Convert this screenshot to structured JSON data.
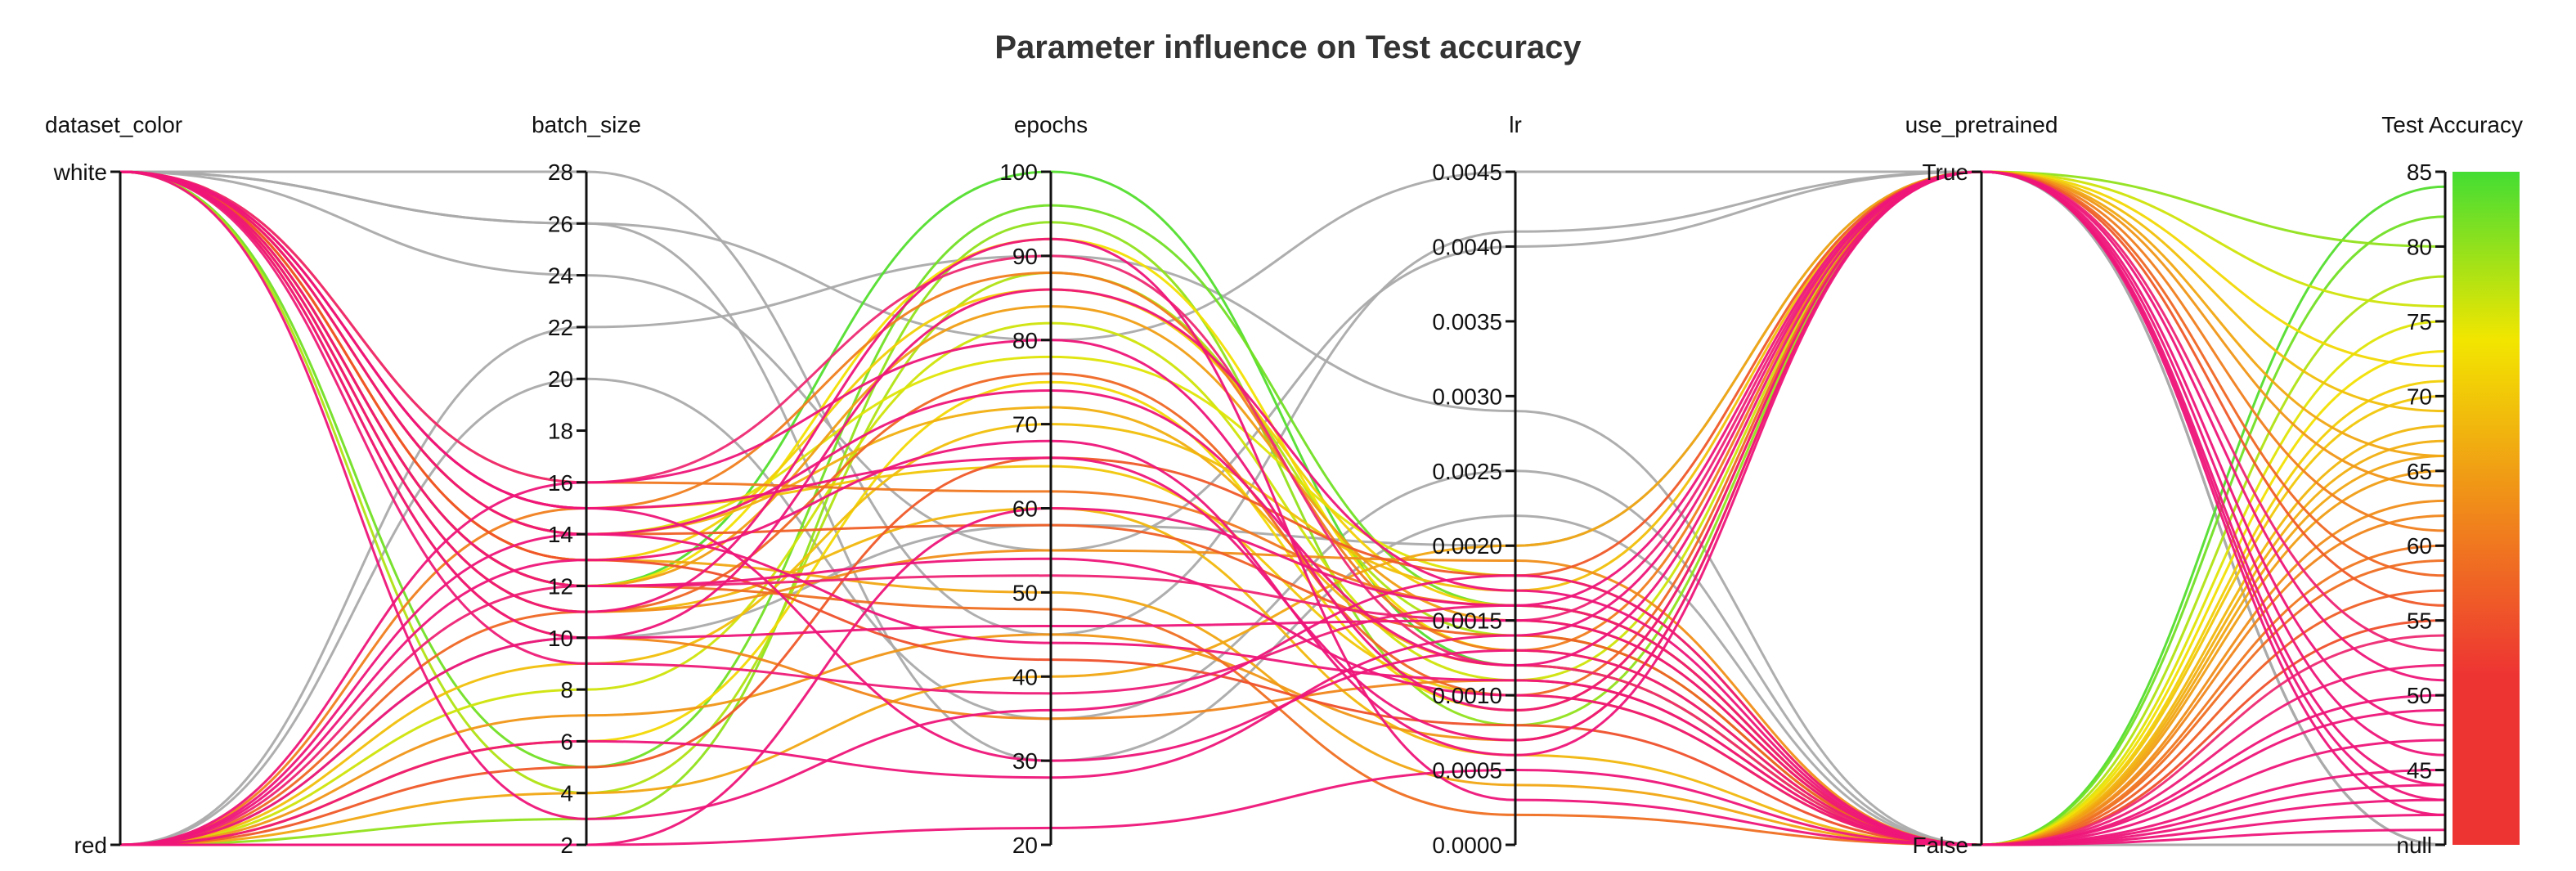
{
  "chart_data": {
    "type": "parallel_coordinates",
    "title": "Parameter influence on Test accuracy",
    "axes": [
      {
        "name": "dataset_color",
        "kind": "categorical",
        "ticks": [
          "white",
          "red"
        ]
      },
      {
        "name": "batch_size",
        "kind": "numeric",
        "range": [
          2,
          28
        ],
        "ticks": [
          "2",
          "4",
          "6",
          "8",
          "10",
          "12",
          "14",
          "16",
          "18",
          "20",
          "22",
          "24",
          "26",
          "28"
        ]
      },
      {
        "name": "epochs",
        "kind": "numeric",
        "range": [
          20,
          100
        ],
        "ticks": [
          "20",
          "30",
          "40",
          "50",
          "60",
          "70",
          "80",
          "90",
          "100"
        ]
      },
      {
        "name": "lr",
        "kind": "numeric",
        "range": [
          0,
          0.0045
        ],
        "ticks": [
          "0.0000",
          "0.0005",
          "0.0010",
          "0.0015",
          "0.0020",
          "0.0025",
          "0.0030",
          "0.0035",
          "0.0040",
          "0.0045"
        ]
      },
      {
        "name": "use_pretrained",
        "kind": "categorical",
        "ticks": [
          "True",
          "False"
        ]
      },
      {
        "name": "Test Accuracy",
        "kind": "numeric",
        "range": [
          40,
          85
        ],
        "ticks": [
          "null",
          "45",
          "50",
          "55",
          "60",
          "65",
          "70",
          "75",
          "80",
          "85"
        ]
      }
    ],
    "colorbar": {
      "range": [
        40,
        85
      ],
      "ticks": [
        "40",
        "45",
        "50",
        "55",
        "60",
        "65",
        "70",
        "75",
        "80",
        "85"
      ],
      "colors": [
        "#ee3333",
        "#ee3333",
        "#f08a1a",
        "#f2e600",
        "#44dd33"
      ]
    },
    "null_color": "#aaaaaa",
    "runs": [
      [
        "white",
        26,
        80,
        0.0045,
        "True",
        null
      ],
      [
        "white",
        28,
        45,
        0.0041,
        "True",
        null
      ],
      [
        "red",
        22,
        90,
        0.0029,
        "False",
        null
      ],
      [
        "red",
        20,
        35,
        0.0025,
        "False",
        null
      ],
      [
        "white",
        24,
        55,
        0.004,
        "True",
        null
      ],
      [
        "white",
        26,
        30,
        0.0022,
        "False",
        null
      ],
      [
        "red",
        10,
        58,
        0.002,
        "True",
        null
      ],
      [
        "white",
        12,
        100,
        0.0012,
        "False",
        84
      ],
      [
        "white",
        5,
        96,
        0.0016,
        "False",
        82
      ],
      [
        "red",
        3,
        94,
        0.0008,
        "True",
        80
      ],
      [
        "white",
        4,
        88,
        0.0014,
        "False",
        78
      ],
      [
        "red",
        8,
        82,
        0.0011,
        "True",
        76
      ],
      [
        "white",
        14,
        78,
        0.0018,
        "False",
        75
      ],
      [
        "white",
        12,
        92,
        0.0013,
        "False",
        73
      ],
      [
        "red",
        6,
        75,
        0.0009,
        "True",
        72
      ],
      [
        "white",
        13,
        86,
        0.0016,
        "False",
        71
      ],
      [
        "white",
        15,
        65,
        0.001,
        "False",
        70
      ],
      [
        "red",
        9,
        70,
        0.0017,
        "True",
        69
      ],
      [
        "white",
        11,
        60,
        0.0006,
        "False",
        68
      ],
      [
        "white",
        14,
        72,
        0.0012,
        "False",
        67
      ],
      [
        "red",
        4,
        40,
        0.002,
        "True",
        66
      ],
      [
        "white",
        13,
        50,
        0.0004,
        "False",
        66
      ],
      [
        "white",
        12,
        84,
        0.0015,
        "False",
        65
      ],
      [
        "red",
        7,
        45,
        0.0007,
        "True",
        64
      ],
      [
        "white",
        11,
        55,
        0.0019,
        "False",
        63
      ],
      [
        "white",
        10,
        35,
        0.0011,
        "False",
        62
      ],
      [
        "red",
        15,
        88,
        0.0013,
        "True",
        61
      ],
      [
        "white",
        16,
        62,
        0.0016,
        "False",
        60
      ],
      [
        "white",
        12,
        48,
        0.0002,
        "False",
        59
      ],
      [
        "red",
        11,
        76,
        0.001,
        "True",
        58
      ],
      [
        "white",
        14,
        58,
        0.0014,
        "False",
        57
      ],
      [
        "red",
        5,
        66,
        0.0018,
        "True",
        56
      ],
      [
        "white",
        13,
        42,
        0.0008,
        "False",
        55
      ],
      [
        "white",
        16,
        90,
        0.0012,
        "False",
        54
      ],
      [
        "red",
        12,
        52,
        0.0015,
        "True",
        53
      ],
      [
        "white",
        9,
        38,
        0.0016,
        "False",
        52
      ],
      [
        "red",
        16,
        80,
        0.0009,
        "True",
        51
      ],
      [
        "white",
        15,
        30,
        0.0013,
        "False",
        50
      ],
      [
        "white",
        10,
        86,
        0.0017,
        "False",
        49
      ],
      [
        "red",
        13,
        68,
        0.0006,
        "True",
        48
      ],
      [
        "white",
        14,
        44,
        0.0011,
        "False",
        47
      ],
      [
        "red",
        6,
        28,
        0.0014,
        "True",
        46
      ],
      [
        "white",
        11,
        92,
        0.0003,
        "False",
        45
      ],
      [
        "red",
        2,
        60,
        0.0016,
        "True",
        44
      ],
      [
        "white",
        12,
        54,
        0.001,
        "False",
        43
      ],
      [
        "red",
        14,
        74,
        0.0012,
        "True",
        42
      ],
      [
        "white",
        3,
        36,
        0.0018,
        "False",
        42
      ],
      [
        "red",
        10,
        46,
        0.0015,
        "False",
        41
      ],
      [
        "white",
        15,
        66,
        0.0007,
        "True",
        43
      ],
      [
        "red",
        2,
        22,
        0.0005,
        "False",
        44
      ]
    ]
  }
}
